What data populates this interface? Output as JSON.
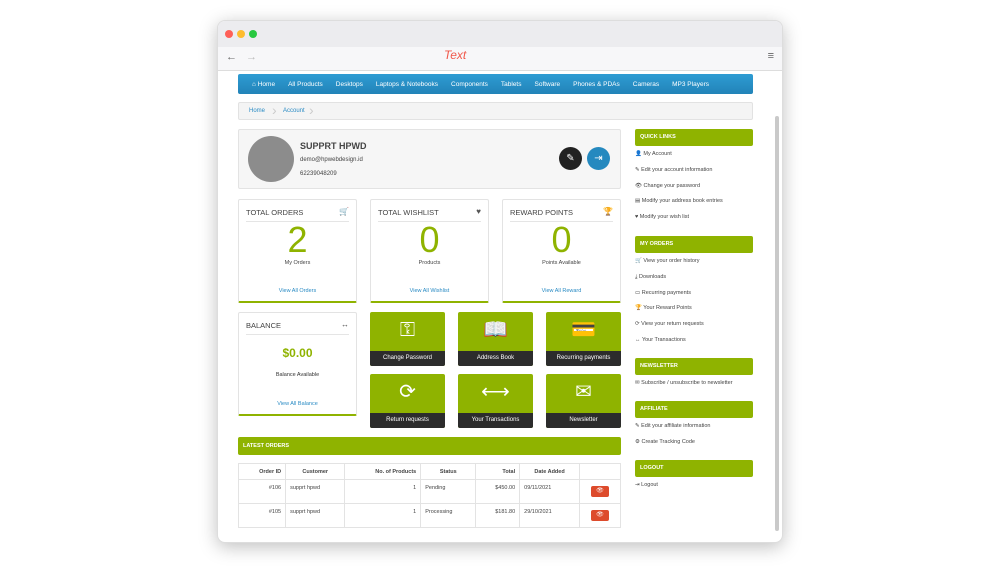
{
  "browser": {
    "title": "Text",
    "back": "←",
    "forward": "→",
    "menu": "≡"
  },
  "nav": [
    "Home",
    "All Products",
    "Desktops",
    "Laptops & Notebooks",
    "Components",
    "Tablets",
    "Software",
    "Phones & PDAs",
    "Cameras",
    "MP3 Players"
  ],
  "breadcrumb": [
    "Home",
    "Account"
  ],
  "profile": {
    "name": "SUPPRT HPWD",
    "email": "demo@hpwebdesign.id",
    "phone": "62239048209"
  },
  "stats": [
    {
      "title": "TOTAL ORDERS",
      "icon": "cart-icon",
      "glyph": "🛒",
      "value": "2",
      "sub": "My Orders",
      "link": "View All Orders"
    },
    {
      "title": "TOTAL WISHLIST",
      "icon": "heart-icon",
      "glyph": "♥",
      "value": "0",
      "sub": "Products",
      "link": "View All Wishlist"
    },
    {
      "title": "REWARD POINTS",
      "icon": "trophy-icon",
      "glyph": "🏆",
      "value": "0",
      "sub": "Points Available",
      "link": "View All Reward"
    }
  ],
  "balance": {
    "title": "BALANCE",
    "glyph": "↔",
    "value": "$0.00",
    "sub": "Balance Available",
    "link": "View All Balance"
  },
  "tiles": [
    {
      "label": "Change Password",
      "icon": "key-icon",
      "glyph": "⚿"
    },
    {
      "label": "Address Book",
      "icon": "book-icon",
      "glyph": "📖"
    },
    {
      "label": "Recurring payments",
      "icon": "credit-card-icon",
      "glyph": "💳"
    },
    {
      "label": "Return requests",
      "icon": "refresh-icon",
      "glyph": "⟳"
    },
    {
      "label": "Your Transactions",
      "icon": "exchange-icon",
      "glyph": "⟷"
    },
    {
      "label": "Newsletter",
      "icon": "envelope-icon",
      "glyph": "✉"
    }
  ],
  "latest_orders": {
    "title": "LATEST ORDERS",
    "headers": [
      "Order ID",
      "Customer",
      "No. of Products",
      "Status",
      "Total",
      "Date Added",
      ""
    ],
    "rows": [
      [
        "#106",
        "supprt hpwd",
        "1",
        "Pending",
        "$450.00",
        "09/11/2021"
      ],
      [
        "#105",
        "supprt hpwd",
        "1",
        "Processing",
        "$181.80",
        "29/10/2021"
      ]
    ]
  },
  "sidebar": [
    {
      "title": "QUICK LINKS",
      "items": [
        [
          "👤",
          "My Account"
        ],
        [
          "✎",
          "Edit your account information"
        ],
        [
          "👁",
          "Change your password"
        ],
        [
          "▤",
          "Modify your address book entries"
        ],
        [
          "♥",
          "Modify your wish list"
        ]
      ]
    },
    {
      "title": "MY ORDERS",
      "items": [
        [
          "🛒",
          "View your order history"
        ],
        [
          "⤓",
          "Downloads"
        ],
        [
          "▭",
          "Recurring payments"
        ],
        [
          "🏆",
          "Your Reward Points"
        ],
        [
          "⟳",
          "View your return requests"
        ],
        [
          "↔",
          "Your Transactions"
        ]
      ]
    },
    {
      "title": "NEWSLETTER",
      "items": [
        [
          "✉",
          "Subscribe / unsubscribe to newsletter"
        ]
      ]
    },
    {
      "title": "AFFILIATE",
      "items": [
        [
          "✎",
          "Edit your affiliate information"
        ],
        [
          "⚙",
          "Create Tracking Code"
        ]
      ]
    },
    {
      "title": "LOGOUT",
      "items": [
        [
          "⇥",
          "Logout"
        ]
      ]
    }
  ],
  "colors": {
    "accent": "#8fb300",
    "nav": "#2589bf",
    "danger": "#dd4b2c",
    "dark": "#2c2c2c"
  }
}
